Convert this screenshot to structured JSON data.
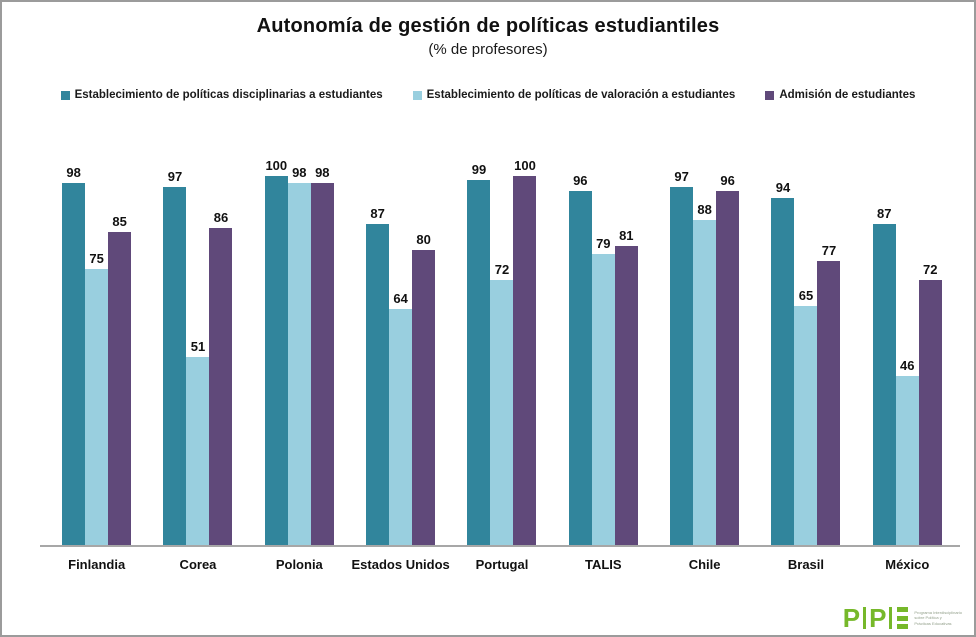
{
  "title": "Autonomía de gestión de políticas estudiantiles",
  "subtitle": "(% de profesores)",
  "chart_data": {
    "type": "bar",
    "title": "Autonomía de gestión de políticas estudiantiles",
    "subtitle": "(% de profesores)",
    "categories": [
      "Finlandia",
      "Corea",
      "Polonia",
      "Estados Unidos",
      "Portugal",
      "TALIS",
      "Chile",
      "Brasil",
      "México"
    ],
    "series": [
      {
        "name": "Establecimiento de políticas disciplinarias a estudiantes",
        "color": "#31859C",
        "values": [
          98,
          97,
          100,
          87,
          99,
          96,
          97,
          94,
          87
        ]
      },
      {
        "name": "Establecimiento de políticas de valoración a estudiantes",
        "color": "#99CFDF",
        "values": [
          75,
          51,
          98,
          64,
          72,
          79,
          88,
          65,
          46
        ]
      },
      {
        "name": "Admisión de estudiantes",
        "color": "#60497A",
        "values": [
          85,
          86,
          98,
          80,
          100,
          81,
          96,
          77,
          72
        ]
      }
    ],
    "ylim": [
      0,
      100
    ],
    "grid": false,
    "legend_position": "top",
    "value_labels": true,
    "axis_line_color": "#A7A7A7"
  },
  "logo": {
    "initials": [
      "P",
      "P",
      "E"
    ],
    "color": "#76B82A",
    "text_lines": [
      "Programa Interdisciplinario",
      "sobre Política y",
      "Prácticas Educativas"
    ]
  }
}
